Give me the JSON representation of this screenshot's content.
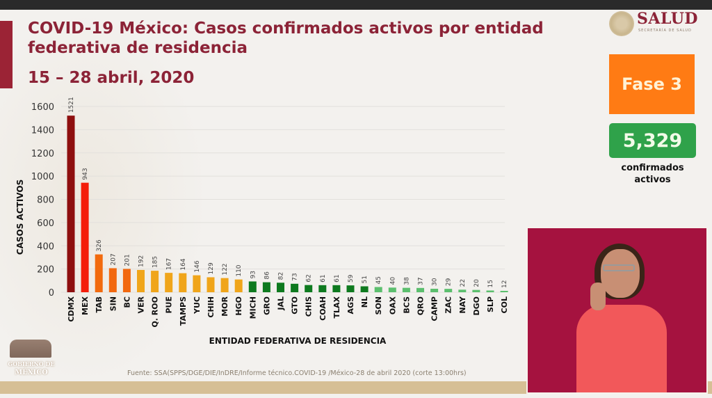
{
  "header": {
    "title": "COVID-19 México: Casos confirmados activos por entidad federativa de residencia",
    "date_range": "15 – 28 abril, 2020"
  },
  "logo": {
    "name": "SALUD",
    "subtitle": "SECRETARÍA DE SALUD"
  },
  "sidebar": {
    "phase_label": "Fase 3",
    "active_count": "5,329",
    "active_label": "confirmados activos",
    "phase_color": "#ff7b14",
    "count_color": "#2fa24a"
  },
  "footer": {
    "source": "Fuente: SSA(SPPS/DGE/DIE/InDRE/Informe técnico.COVID-19 /México-28 de abril 2020 (corte 13:00hrs)",
    "gob_logo_line1": "GOBIERNO DE",
    "gob_logo_line2": "MÉXICO"
  },
  "video": {
    "description": "sign-language-interpreter"
  },
  "chart_data": {
    "type": "bar",
    "title": "COVID-19 México: Casos confirmados activos por entidad federativa de residencia",
    "subtitle": "15 – 28 abril, 2020",
    "xlabel": "ENTIDAD FEDERATIVA DE  RESIDENCIA",
    "ylabel": "CASOS ACTIVOS",
    "ylim": [
      0,
      1600
    ],
    "yticks": [
      0,
      200,
      400,
      600,
      800,
      1000,
      1200,
      1400,
      1600
    ],
    "grid": true,
    "categories": [
      "CDMX",
      "MEX",
      "TAB",
      "SIN",
      "BC",
      "VER",
      "Q. ROO",
      "PUE",
      "TAMPS",
      "YUC",
      "CHIH",
      "MOR",
      "HGO",
      "MICH",
      "GRO",
      "JAL",
      "GTO",
      "CHIS",
      "COAH",
      "TLAX",
      "AGS",
      "NL",
      "SON",
      "OAX",
      "BCS",
      "QRO",
      "CAMP",
      "ZAC",
      "NAY",
      "DGO",
      "SLP",
      "COL"
    ],
    "values": [
      1521,
      943,
      326,
      207,
      201,
      192,
      185,
      167,
      164,
      146,
      129,
      122,
      110,
      93,
      86,
      82,
      73,
      62,
      61,
      61,
      59,
      51,
      45,
      40,
      38,
      37,
      30,
      29,
      22,
      20,
      15,
      12
    ],
    "colors": [
      "#8e0f0f",
      "#f41d0a",
      "#f26a0d",
      "#f2680f",
      "#f2680f",
      "#f0a51a",
      "#f0a51a",
      "#f0a51a",
      "#f0a51a",
      "#f0a51a",
      "#f0a51a",
      "#f0a51a",
      "#f0a51a",
      "#0e7a1f",
      "#0e7a1f",
      "#0e7a1f",
      "#0e7a1f",
      "#0e7a1f",
      "#0e7a1f",
      "#0e7a1f",
      "#0e7a1f",
      "#0e7a1f",
      "#5cbf6e",
      "#5cbf6e",
      "#5cbf6e",
      "#5cbf6e",
      "#5cbf6e",
      "#5cbf6e",
      "#5cbf6e",
      "#5cbf6e",
      "#5cbf6e",
      "#5cbf6e"
    ]
  }
}
